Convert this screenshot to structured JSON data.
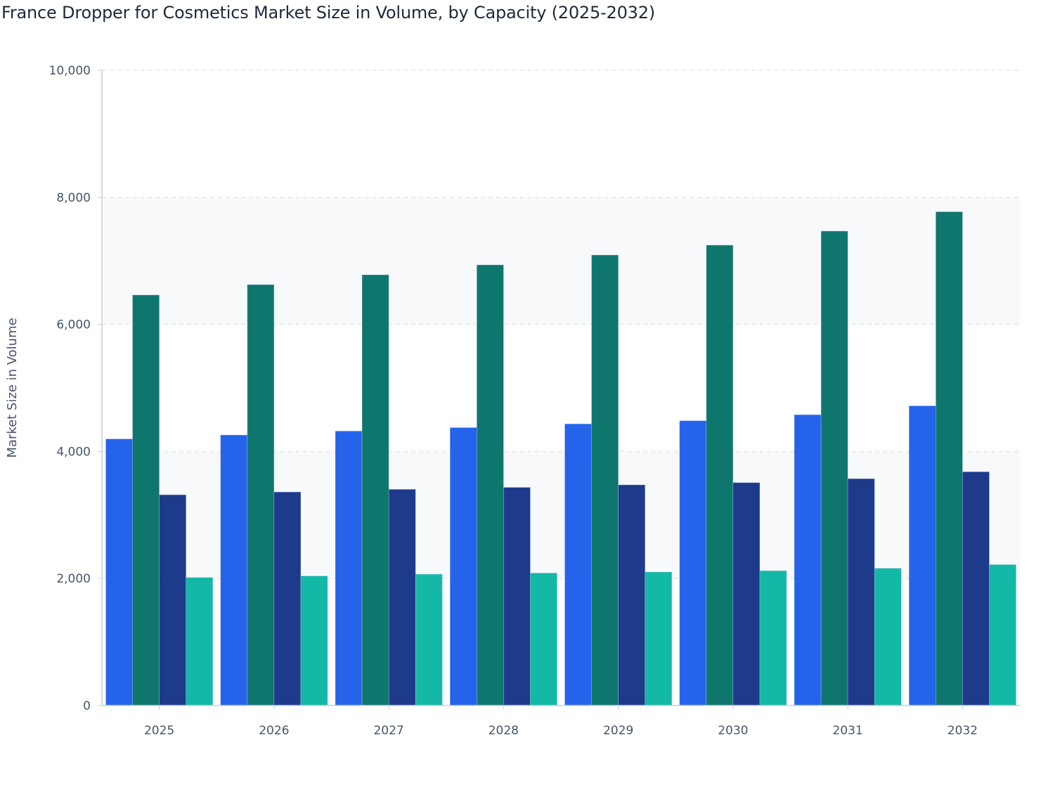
{
  "chart_data": {
    "type": "bar",
    "title": "France Dropper for Cosmetics Market Size in Volume, by Capacity (2025-2032)",
    "xlabel": "",
    "ylabel": "Market Size in Volume",
    "ylim": [
      0,
      10000
    ],
    "yticks": [
      "0",
      "2,000",
      "4,000",
      "6,000",
      "8,000",
      "10,000"
    ],
    "ytick_values": [
      0,
      2000,
      4000,
      6000,
      8000,
      10000
    ],
    "grid": true,
    "legend": "none",
    "categories": [
      "2025",
      "2026",
      "2027",
      "2028",
      "2029",
      "2030",
      "2031",
      "2032"
    ],
    "series": [
      {
        "color": "#2563EB",
        "values": [
          4196,
          4258,
          4320,
          4375,
          4433,
          4483,
          4577,
          4717
        ]
      },
      {
        "color": "#0F766E",
        "values": [
          6462,
          6625,
          6780,
          6936,
          7091,
          7247,
          7468,
          7772
        ]
      },
      {
        "color": "#1E3A8A",
        "values": [
          3317,
          3361,
          3403,
          3434,
          3473,
          3508,
          3570,
          3679
        ]
      },
      {
        "color": "#14B8A6",
        "values": [
          2015,
          2039,
          2067,
          2085,
          2101,
          2121,
          2160,
          2218
        ]
      }
    ]
  }
}
